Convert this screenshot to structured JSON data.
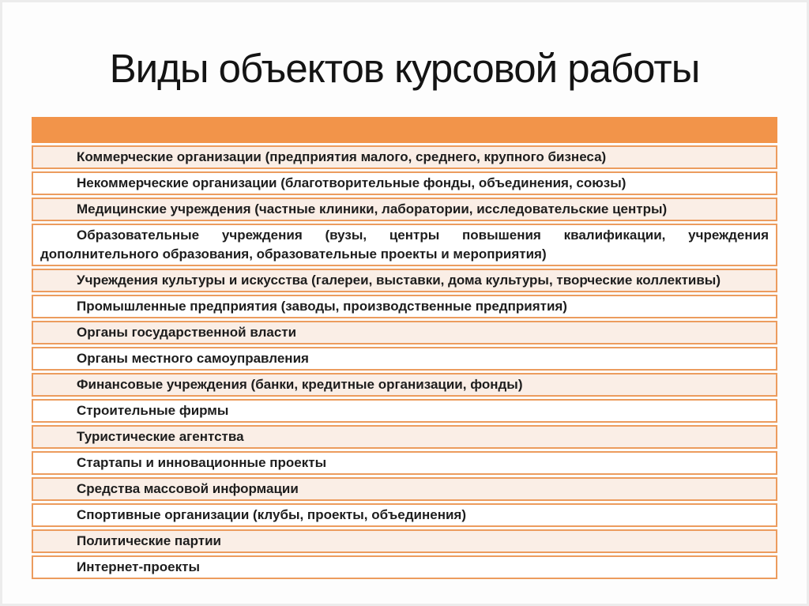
{
  "title": "Виды объектов курсовой работы",
  "colors": {
    "header_orange": "#F2944A",
    "border_orange": "#EC9C5E",
    "row_peach": "#FAEEE6",
    "row_white": "#FFFFFF",
    "text": "#1D1D1D",
    "frame_gray": "#ECECEC"
  },
  "table": {
    "header_label": "",
    "rows": [
      "Коммерческие организации (предприятия малого, среднего, крупного бизнеса)",
      "Некоммерческие организации (благотворительные фонды, объединения, союзы)",
      "Медицинские учреждения (частные клиники, лаборатории, исследовательские центры)",
      "Образовательные учреждения (вузы, центры повышения квалификации, учреждения дополнительного образования, образовательные проекты и мероприятия)",
      "Учреждения культуры и искусства (галереи, выставки, дома культуры, творческие коллективы)",
      "Промышленные предприятия (заводы, производственные предприятия)",
      "Органы государственной власти",
      "Органы местного самоуправления",
      "Финансовые учреждения (банки, кредитные организации, фонды)",
      "Строительные фирмы",
      "Туристические агентства",
      "Стартапы и инновационные проекты",
      "Средства массовой информации",
      "Спортивные организации (клубы, проекты, объединения)",
      "Политические партии",
      "Интернет-проекты"
    ]
  }
}
